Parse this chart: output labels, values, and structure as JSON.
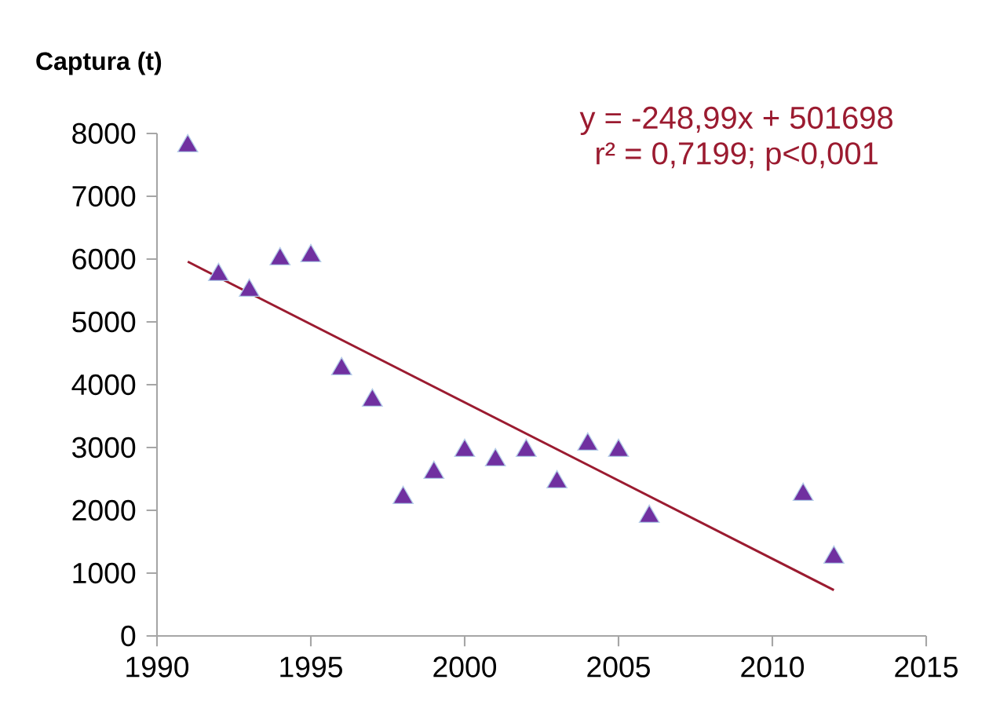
{
  "chart_data": {
    "type": "scatter",
    "ylabel": "Captura (t)",
    "marker": "triangle",
    "grid": false,
    "annotations": [
      "y = -248,99x + 501698",
      "r² = 0,7199; p<0,001"
    ],
    "xlim": [
      1990,
      2015
    ],
    "xticks": [
      1990,
      1995,
      2000,
      2005,
      2010,
      2015
    ],
    "ylim": [
      0,
      8000
    ],
    "yticks": [
      0,
      1000,
      2000,
      3000,
      4000,
      5000,
      6000,
      7000,
      8000
    ],
    "series": [
      {
        "color": "#7030a0",
        "x": [
          1991,
          1992,
          1993,
          1994,
          1995,
          1996,
          1997,
          1998,
          1999,
          2000,
          2001,
          2002,
          2003,
          2004,
          2005,
          2006,
          2011,
          2012
        ],
        "values": [
          7800,
          5750,
          5500,
          6000,
          6050,
          4250,
          3750,
          2200,
          2600,
          2950,
          2800,
          2950,
          2450,
          3050,
          2950,
          1900,
          2250,
          1250
        ]
      },
      {
        "type": "line",
        "color": "#9b1b30",
        "marker": "none",
        "x": [
          1991,
          2012
        ],
        "values": [
          5959,
          730
        ]
      }
    ]
  }
}
